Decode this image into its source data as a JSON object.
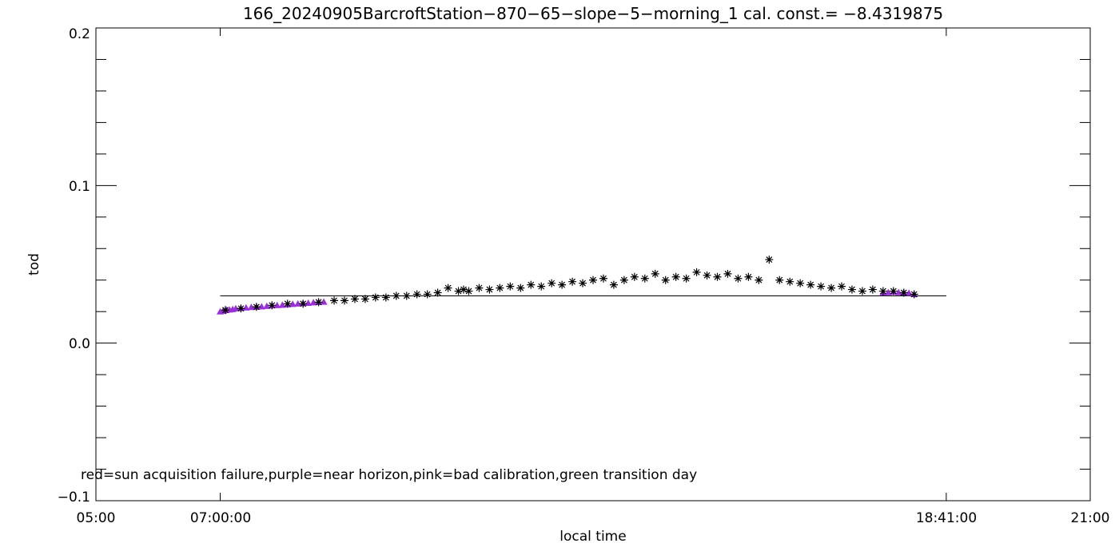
{
  "chart_data": {
    "type": "scatter",
    "title": "166_20240905BarcroftStation−870−65−slope−5−morning_1 cal. const.= −8.4319875",
    "xlabel": "local time",
    "ylabel": "tod",
    "xlim": [
      "05:00",
      "21:00"
    ],
    "ylim": [
      -0.1,
      0.2
    ],
    "x_tick_labels": [
      "05:00",
      "07:00:00",
      "18:41:00",
      "21:00"
    ],
    "y_tick_labels": [
      "−0.1",
      "0.0",
      "0.1",
      "0.2"
    ],
    "annotation": "red=sun acquisition failure,purple=near horizon,pink=bad calibration,green transition day",
    "reference_line": {
      "from": "07:00:00",
      "to": "18:41:00",
      "value": 0.03
    },
    "colors": {
      "normal": "#000000",
      "near_horizon": "#9b30d9"
    },
    "series": [
      {
        "name": "purple=near horizon",
        "marker": "triangle",
        "color": "#9b30d9",
        "x": [
          "07:00",
          "07:03",
          "07:06",
          "07:09",
          "07:12",
          "07:15",
          "07:20",
          "07:25",
          "07:30",
          "07:35",
          "07:40",
          "07:45",
          "07:50",
          "07:55",
          "08:00",
          "08:05",
          "08:10",
          "08:15",
          "08:20",
          "08:25",
          "08:30",
          "08:35",
          "08:40",
          "17:40",
          "17:45",
          "17:50",
          "17:55",
          "18:00",
          "18:05",
          "18:10"
        ],
        "y": [
          0.02,
          0.0205,
          0.021,
          0.0212,
          0.0215,
          0.022,
          0.0222,
          0.0225,
          0.0228,
          0.023,
          0.0232,
          0.0235,
          0.0238,
          0.024,
          0.0242,
          0.0245,
          0.0248,
          0.025,
          0.0252,
          0.0255,
          0.0258,
          0.026,
          0.0262,
          0.032,
          0.0322,
          0.0325,
          0.0322,
          0.032,
          0.0318,
          0.031
        ]
      },
      {
        "name": "",
        "marker": "asterisk",
        "color": "#000000",
        "x": [
          "07:05",
          "07:20",
          "07:35",
          "07:50",
          "08:05",
          "08:20",
          "08:35",
          "08:50",
          "09:00",
          "09:10",
          "09:20",
          "09:30",
          "09:40",
          "09:50",
          "10:00",
          "10:10",
          "10:20",
          "10:30",
          "10:40",
          "10:50",
          "10:55",
          "11:00",
          "11:10",
          "11:20",
          "11:30",
          "11:40",
          "11:50",
          "12:00",
          "12:10",
          "12:20",
          "12:30",
          "12:40",
          "12:50",
          "13:00",
          "13:10",
          "13:20",
          "13:30",
          "13:40",
          "13:50",
          "14:00",
          "14:10",
          "14:20",
          "14:30",
          "14:40",
          "14:50",
          "15:00",
          "15:10",
          "15:20",
          "15:30",
          "15:40",
          "15:50",
          "16:00",
          "16:10",
          "16:20",
          "16:30",
          "16:40",
          "16:50",
          "17:00",
          "17:10",
          "17:20",
          "17:30",
          "17:40",
          "17:50",
          "18:00",
          "18:10"
        ],
        "y": [
          0.021,
          0.022,
          0.023,
          0.024,
          0.025,
          0.025,
          0.026,
          0.027,
          0.027,
          0.028,
          0.028,
          0.029,
          0.029,
          0.03,
          0.03,
          0.031,
          0.031,
          0.032,
          0.035,
          0.033,
          0.034,
          0.033,
          0.035,
          0.034,
          0.035,
          0.036,
          0.035,
          0.037,
          0.036,
          0.038,
          0.037,
          0.039,
          0.038,
          0.04,
          0.041,
          0.037,
          0.04,
          0.042,
          0.041,
          0.044,
          0.04,
          0.042,
          0.041,
          0.045,
          0.043,
          0.042,
          0.044,
          0.041,
          0.042,
          0.04,
          0.053,
          0.04,
          0.039,
          0.038,
          0.037,
          0.036,
          0.035,
          0.036,
          0.034,
          0.033,
          0.034,
          0.033,
          0.033,
          0.032,
          0.031
        ]
      }
    ]
  }
}
